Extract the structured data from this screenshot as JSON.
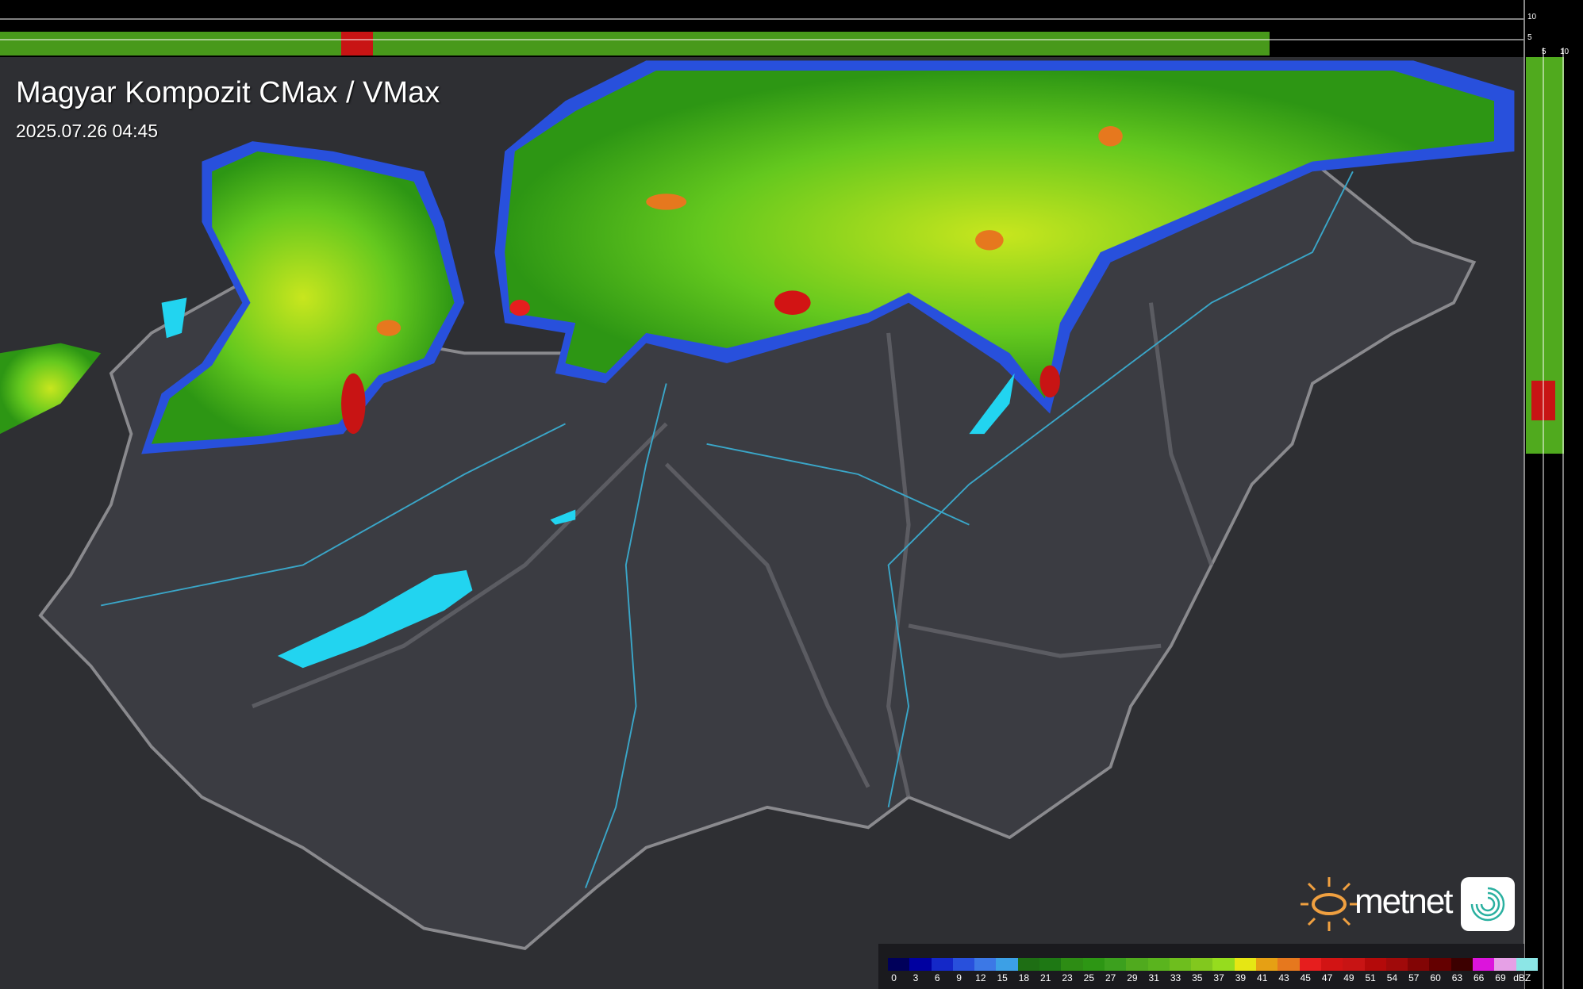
{
  "header": {
    "title": "Magyar Kompozit CMax / VMax",
    "timestamp": "2025.07.26 04:45"
  },
  "profile_axes": {
    "top_labels": [
      "10",
      "5"
    ],
    "right_labels": [
      "5",
      "10"
    ]
  },
  "legend": {
    "unit": "dBZ",
    "labels": [
      "0",
      "3",
      "6",
      "9",
      "12",
      "15",
      "18",
      "21",
      "23",
      "25",
      "27",
      "29",
      "31",
      "33",
      "35",
      "37",
      "39",
      "41",
      "43",
      "45",
      "47",
      "49",
      "51",
      "54",
      "57",
      "60",
      "63",
      "66",
      "69"
    ],
    "colors": [
      "#00005a",
      "#0000a0",
      "#1428c8",
      "#2850dc",
      "#3c78e6",
      "#3ca0e6",
      "#1e6e14",
      "#1e7814",
      "#2d8c14",
      "#2d9614",
      "#3ca01e",
      "#50aa1e",
      "#5ab41e",
      "#6ebe1e",
      "#82c81e",
      "#96dc1e",
      "#e6e614",
      "#e6a014",
      "#e6781e",
      "#e61e1e",
      "#d21414",
      "#c81414",
      "#b40a0a",
      "#a00a0a",
      "#820505",
      "#640000",
      "#3c0000",
      "#dc14dc",
      "#e6a0e6",
      "#8ce6e6"
    ]
  },
  "logo": {
    "brand": "metnet"
  },
  "colors": {
    "background": "#2e2f33",
    "country": "#3b3c42",
    "border": "#8a8a8e",
    "rivers": "#3aa6c8",
    "lakes": "#22d4f0"
  }
}
